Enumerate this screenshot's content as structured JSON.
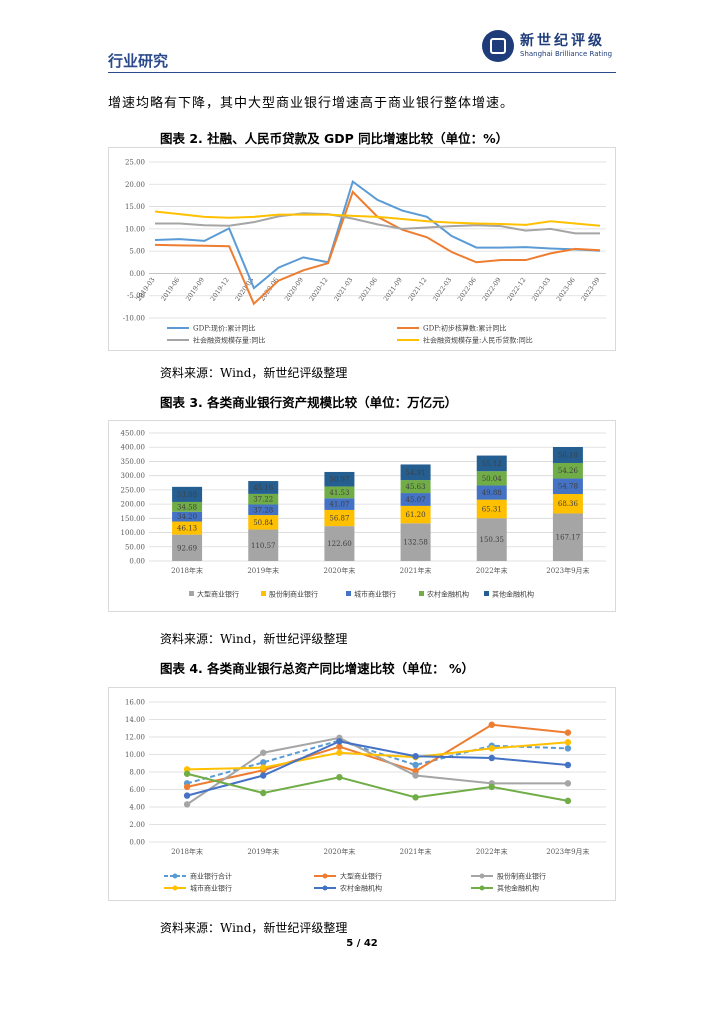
{
  "header": {
    "section": "行业研究",
    "logo_cn": "新世纪评级",
    "logo_en": "Shanghai Brilliance Rating"
  },
  "intro_text": "增速均略有下降，其中大型商业银行增速高于商业银行整体增速。",
  "source_text": "资料来源：Wind，新世纪评级整理",
  "page_number": "5 / 42",
  "charts": [
    {
      "caption": "图表 2.  社融、人民币贷款及 GDP 同比增速比较（单位：%）",
      "chart_data": {
        "type": "line",
        "x": [
          "2019-03",
          "2019-06",
          "2019-09",
          "2019-12",
          "2020-03",
          "2020-06",
          "2020-09",
          "2020-12",
          "2021-03",
          "2021-06",
          "2021-09",
          "2021-12",
          "2022-03",
          "2022-06",
          "2022-09",
          "2022-12",
          "2023-03",
          "2023-06",
          "2023-09"
        ],
        "yticks": [
          "25.00",
          "20.00",
          "15.00",
          "10.00",
          "5.00",
          "0.00",
          "-5.00",
          "-10.00"
        ],
        "ylim": [
          -10,
          25
        ],
        "legend": "bottom",
        "series": [
          {
            "name": "GDP:现价:累计同比",
            "color": "#5b9bd5",
            "values": [
              7.5,
              7.7,
              7.3,
              10.1,
              -3.3,
              1.3,
              3.6,
              2.5,
              20.6,
              16.5,
              14.1,
              12.7,
              8.4,
              5.8,
              5.8,
              5.9,
              5.6,
              5.4,
              5.1
            ]
          },
          {
            "name": "GDP:初步核算数:累计同比",
            "color": "#ed7d31",
            "values": [
              6.4,
              6.3,
              6.2,
              6.1,
              -6.8,
              -1.6,
              0.7,
              2.3,
              18.3,
              12.7,
              9.8,
              8.1,
              4.8,
              2.5,
              3.0,
              3.0,
              4.5,
              5.5,
              5.2
            ]
          },
          {
            "name": "社会融资规模存量:同比",
            "color": "#a5a5a5",
            "values": [
              11.2,
              11.2,
              10.8,
              10.7,
              11.5,
              12.8,
              13.5,
              13.3,
              12.3,
              11.0,
              10.0,
              10.3,
              10.6,
              10.8,
              10.6,
              9.6,
              10.0,
              9.0,
              9.0
            ]
          },
          {
            "name": "社会融资规模存量:人民币贷款:同比",
            "color": "#ffc000",
            "values": [
              13.9,
              13.3,
              12.7,
              12.5,
              12.7,
              13.2,
              13.2,
              13.2,
              12.9,
              12.7,
              12.2,
              11.7,
              11.4,
              11.2,
              11.1,
              10.9,
              11.7,
              11.2,
              10.7
            ]
          }
        ]
      }
    },
    {
      "caption": "图表 3.  各类商业银行资产规模比较（单位：万亿元）",
      "chart_data": {
        "type": "bar",
        "stacked": true,
        "categories": [
          "2018年末",
          "2019年末",
          "2020年末",
          "2021年末",
          "2022年末",
          "2023年9月末"
        ],
        "yticks": [
          "450.00",
          "400.00",
          "350.00",
          "300.00",
          "250.00",
          "200.00",
          "150.00",
          "100.00",
          "50.00",
          "0.00"
        ],
        "ylim": [
          0,
          450
        ],
        "legend": "bottom",
        "series": [
          {
            "name": "大型商业银行",
            "color": "#a5a5a5",
            "values": [
              92.69,
              110.57,
              122.6,
              132.58,
              150.35,
              167.17
            ],
            "labels": [
              "92.69",
              "110.57",
              "122.60",
              "132.58",
              "150.35",
              "167.17"
            ]
          },
          {
            "name": "股份制商业银行",
            "color": "#ffc000",
            "values": [
              46.13,
              50.84,
              56.87,
              61.2,
              65.31,
              68.36
            ],
            "labels": [
              "46.13",
              "50.84",
              "56.87",
              "61.20",
              "65.31",
              "68.36"
            ]
          },
          {
            "name": "城市商业银行",
            "color": "#4472c4",
            "values": [
              34.2,
              37.28,
              41.07,
              45.07,
              49.88,
              54.78
            ],
            "labels": [
              "34.20",
              "37.28",
              "41.07",
              "45.07",
              "49.88",
              "54.78"
            ]
          },
          {
            "name": "农村金融机构",
            "color": "#70ad47",
            "values": [
              34.58,
              37.22,
              41.53,
              45.63,
              50.04,
              54.26
            ],
            "labels": [
              "34.58",
              "37.22",
              "41.53",
              "45.63",
              "50.04",
              "54.26"
            ]
          },
          {
            "name": "其他金融机构",
            "color": "#255e91",
            "values": [
              53.08,
              45.16,
              50.97,
              54.91,
              55.12,
              56.18
            ],
            "labels": [
              "53.08",
              "45.16",
              "50.97",
              "54.91",
              "55.12",
              "56.18"
            ]
          }
        ]
      }
    },
    {
      "caption": "图表 4.  各类商业银行总资产同比增速比较（单位：  %）",
      "chart_data": {
        "type": "line",
        "categories": [
          "2018年末",
          "2019年末",
          "2020年末",
          "2021年末",
          "2022年末",
          "2023年9月末"
        ],
        "yticks": [
          "16.00",
          "14.00",
          "12.00",
          "10.00",
          "8.00",
          "6.00",
          "4.00",
          "2.00",
          "0.00"
        ],
        "ylim": [
          0,
          16
        ],
        "legend": "bottom",
        "series": [
          {
            "name": "商业银行合计",
            "color": "#5b9bd5",
            "dashed": true,
            "values": [
              6.7,
              9.1,
              11.6,
              8.8,
              11.0,
              10.7
            ]
          },
          {
            "name": "大型商业银行",
            "color": "#ed7d31",
            "values": [
              6.3,
              8.2,
              10.9,
              8.1,
              13.4,
              12.5
            ]
          },
          {
            "name": "股份制商业银行",
            "color": "#a5a5a5",
            "values": [
              4.3,
              10.2,
              11.9,
              7.6,
              6.7,
              6.7
            ]
          },
          {
            "name": "城市商业银行",
            "color": "#ffc000",
            "values": [
              8.3,
              8.5,
              10.2,
              9.7,
              10.7,
              11.4
            ]
          },
          {
            "name": "农村金融机构",
            "color": "#4472c4",
            "values": [
              5.3,
              7.6,
              11.5,
              9.8,
              9.6,
              8.8
            ]
          },
          {
            "name": "其他金融机构",
            "color": "#70ad47",
            "values": [
              7.8,
              5.6,
              7.4,
              5.1,
              6.3,
              4.7
            ]
          }
        ]
      }
    }
  ]
}
